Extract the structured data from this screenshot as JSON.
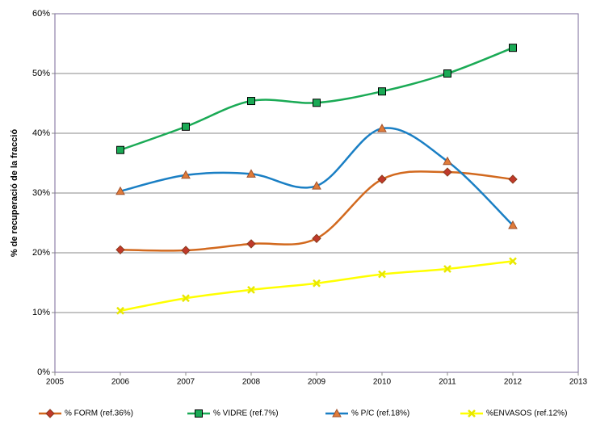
{
  "chart_data": {
    "type": "line",
    "y_label": "% de recuperació de la fracció",
    "x": [
      2006,
      2007,
      2008,
      2009,
      2010,
      2011,
      2012
    ],
    "series": [
      {
        "name": "% FORM (ref.36%)",
        "color": "#d2691e",
        "marker": "diamond",
        "marker_color": "#c0392b",
        "values": [
          20.5,
          20.4,
          21.5,
          22.4,
          32.3,
          33.5,
          32.3
        ]
      },
      {
        "name": "% VIDRE (ref.7%)",
        "color": "#1aaa55",
        "marker": "square",
        "marker_color": "#1aaa55",
        "values": [
          37.2,
          41.1,
          45.4,
          45.1,
          47.0,
          50.0,
          54.3
        ]
      },
      {
        "name": "% P/C (ref.18%)",
        "color": "#1a7fc4",
        "marker": "triangle",
        "marker_color": "#e07b39",
        "values": [
          30.3,
          33.0,
          33.2,
          31.2,
          40.8,
          35.3,
          24.6
        ]
      },
      {
        "name": "%ENVASOS (ref.12%)",
        "color": "#ffff00",
        "marker": "x",
        "marker_color": "#e8e800",
        "values": [
          10.3,
          12.4,
          13.8,
          14.9,
          16.4,
          17.3,
          18.6
        ]
      }
    ],
    "xlim": [
      2005,
      2013
    ],
    "xticks": [
      2005,
      2006,
      2007,
      2008,
      2009,
      2010,
      2011,
      2012,
      2013
    ],
    "ylim": [
      0,
      60
    ],
    "yticks": [
      {
        "value": 0,
        "label": "0%"
      },
      {
        "value": 10,
        "label": "10%"
      },
      {
        "value": 20,
        "label": "20%"
      },
      {
        "value": 30,
        "label": "30%"
      },
      {
        "value": 40,
        "label": "40%"
      },
      {
        "value": 50,
        "label": "50%"
      },
      {
        "value": 60,
        "label": "60%"
      }
    ],
    "grid": true,
    "smooth": true,
    "legend": "bottom"
  }
}
